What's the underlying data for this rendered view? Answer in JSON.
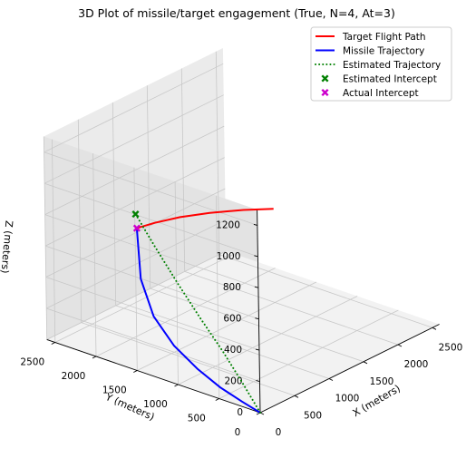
{
  "chart_data": {
    "type": "line",
    "title": "3D Plot of missile/target engagement (True, N=4, At=3)",
    "xlabel": "X (meters)",
    "ylabel": "Y (meters)",
    "zlabel": "Z (meters)",
    "xlim": [
      0,
      2600
    ],
    "ylim": [
      0,
      2600
    ],
    "zlim": [
      0,
      1300
    ],
    "x_ticks": [
      0,
      500,
      1000,
      1500,
      2000,
      2500
    ],
    "y_ticks": [
      0,
      500,
      1000,
      1500,
      2000,
      2500
    ],
    "z_ticks": [
      0,
      200,
      400,
      600,
      800,
      1000,
      1200
    ],
    "grid": true,
    "legend_position": "top-right",
    "series": [
      {
        "name": "Target Flight Path",
        "kind": "line",
        "color": "#ff0000",
        "style": "solid",
        "x": [
          850,
          1050,
          1300,
          1550,
          1800,
          2000
        ],
        "y": [
          2200,
          2150,
          2050,
          1900,
          1700,
          1500
        ],
        "z": [
          600,
          600,
          600,
          600,
          600,
          600
        ]
      },
      {
        "name": "Missile Trajectory",
        "kind": "line",
        "color": "#0000ff",
        "style": "solid",
        "x": [
          0,
          70,
          160,
          280,
          420,
          580,
          720,
          850
        ],
        "y": [
          0,
          280,
          620,
          1000,
          1400,
          1780,
          2050,
          2200
        ],
        "z": [
          0,
          5,
          15,
          40,
          85,
          170,
          330,
          600
        ]
      },
      {
        "name": "Estimated Trajectory",
        "kind": "line",
        "color": "#008000",
        "style": "dotted",
        "x": [
          0,
          150,
          300,
          450,
          600,
          750,
          870
        ],
        "y": [
          0,
          330,
          700,
          1100,
          1500,
          1900,
          2230
        ],
        "z": [
          0,
          90,
          200,
          310,
          430,
          560,
          680
        ]
      },
      {
        "name": "Estimated Intercept",
        "kind": "scatter",
        "marker": "x",
        "color": "#008000",
        "x": [
          870
        ],
        "y": [
          2230
        ],
        "z": [
          680
        ]
      },
      {
        "name": "Actual Intercept",
        "kind": "scatter",
        "marker": "x",
        "color": "#cc00cc",
        "x": [
          850
        ],
        "y": [
          2200
        ],
        "z": [
          600
        ]
      }
    ]
  }
}
